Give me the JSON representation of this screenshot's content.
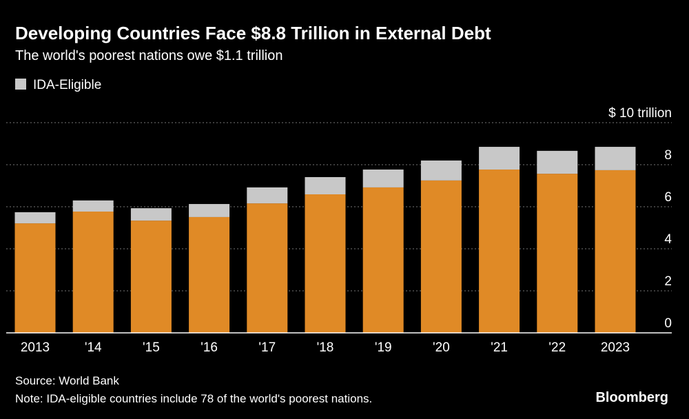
{
  "chart_data": {
    "type": "stacked_bar",
    "title": "Developing Countries Face $8.8 Trillion in External Debt",
    "subtitle": "The world's poorest nations owe $1.1 trillion",
    "categories": [
      "2013",
      "'14",
      "'15",
      "'16",
      "'17",
      "'18",
      "'19",
      "'20",
      "'21",
      "'22",
      "2023"
    ],
    "series": [
      {
        "color": "#e08a26",
        "values": [
          5.21,
          5.77,
          5.34,
          5.51,
          6.16,
          6.59,
          6.92,
          7.25,
          7.77,
          7.57,
          7.74
        ]
      },
      {
        "name": "IDA-Eligible",
        "color": "#c8c8c8",
        "values": [
          0.53,
          0.53,
          0.59,
          0.62,
          0.76,
          0.82,
          0.85,
          0.95,
          1.08,
          1.09,
          1.11
        ]
      }
    ],
    "ylim": [
      0,
      10
    ],
    "yticks": [
      0,
      2,
      4,
      6,
      8,
      {
        "value": 10,
        "label": "$ 10 trillion"
      }
    ],
    "grid": true,
    "source": "Source: World Bank",
    "note": "Note: IDA-eligible countries include 78 of the world's poorest nations.",
    "brand": "Bloomberg"
  }
}
